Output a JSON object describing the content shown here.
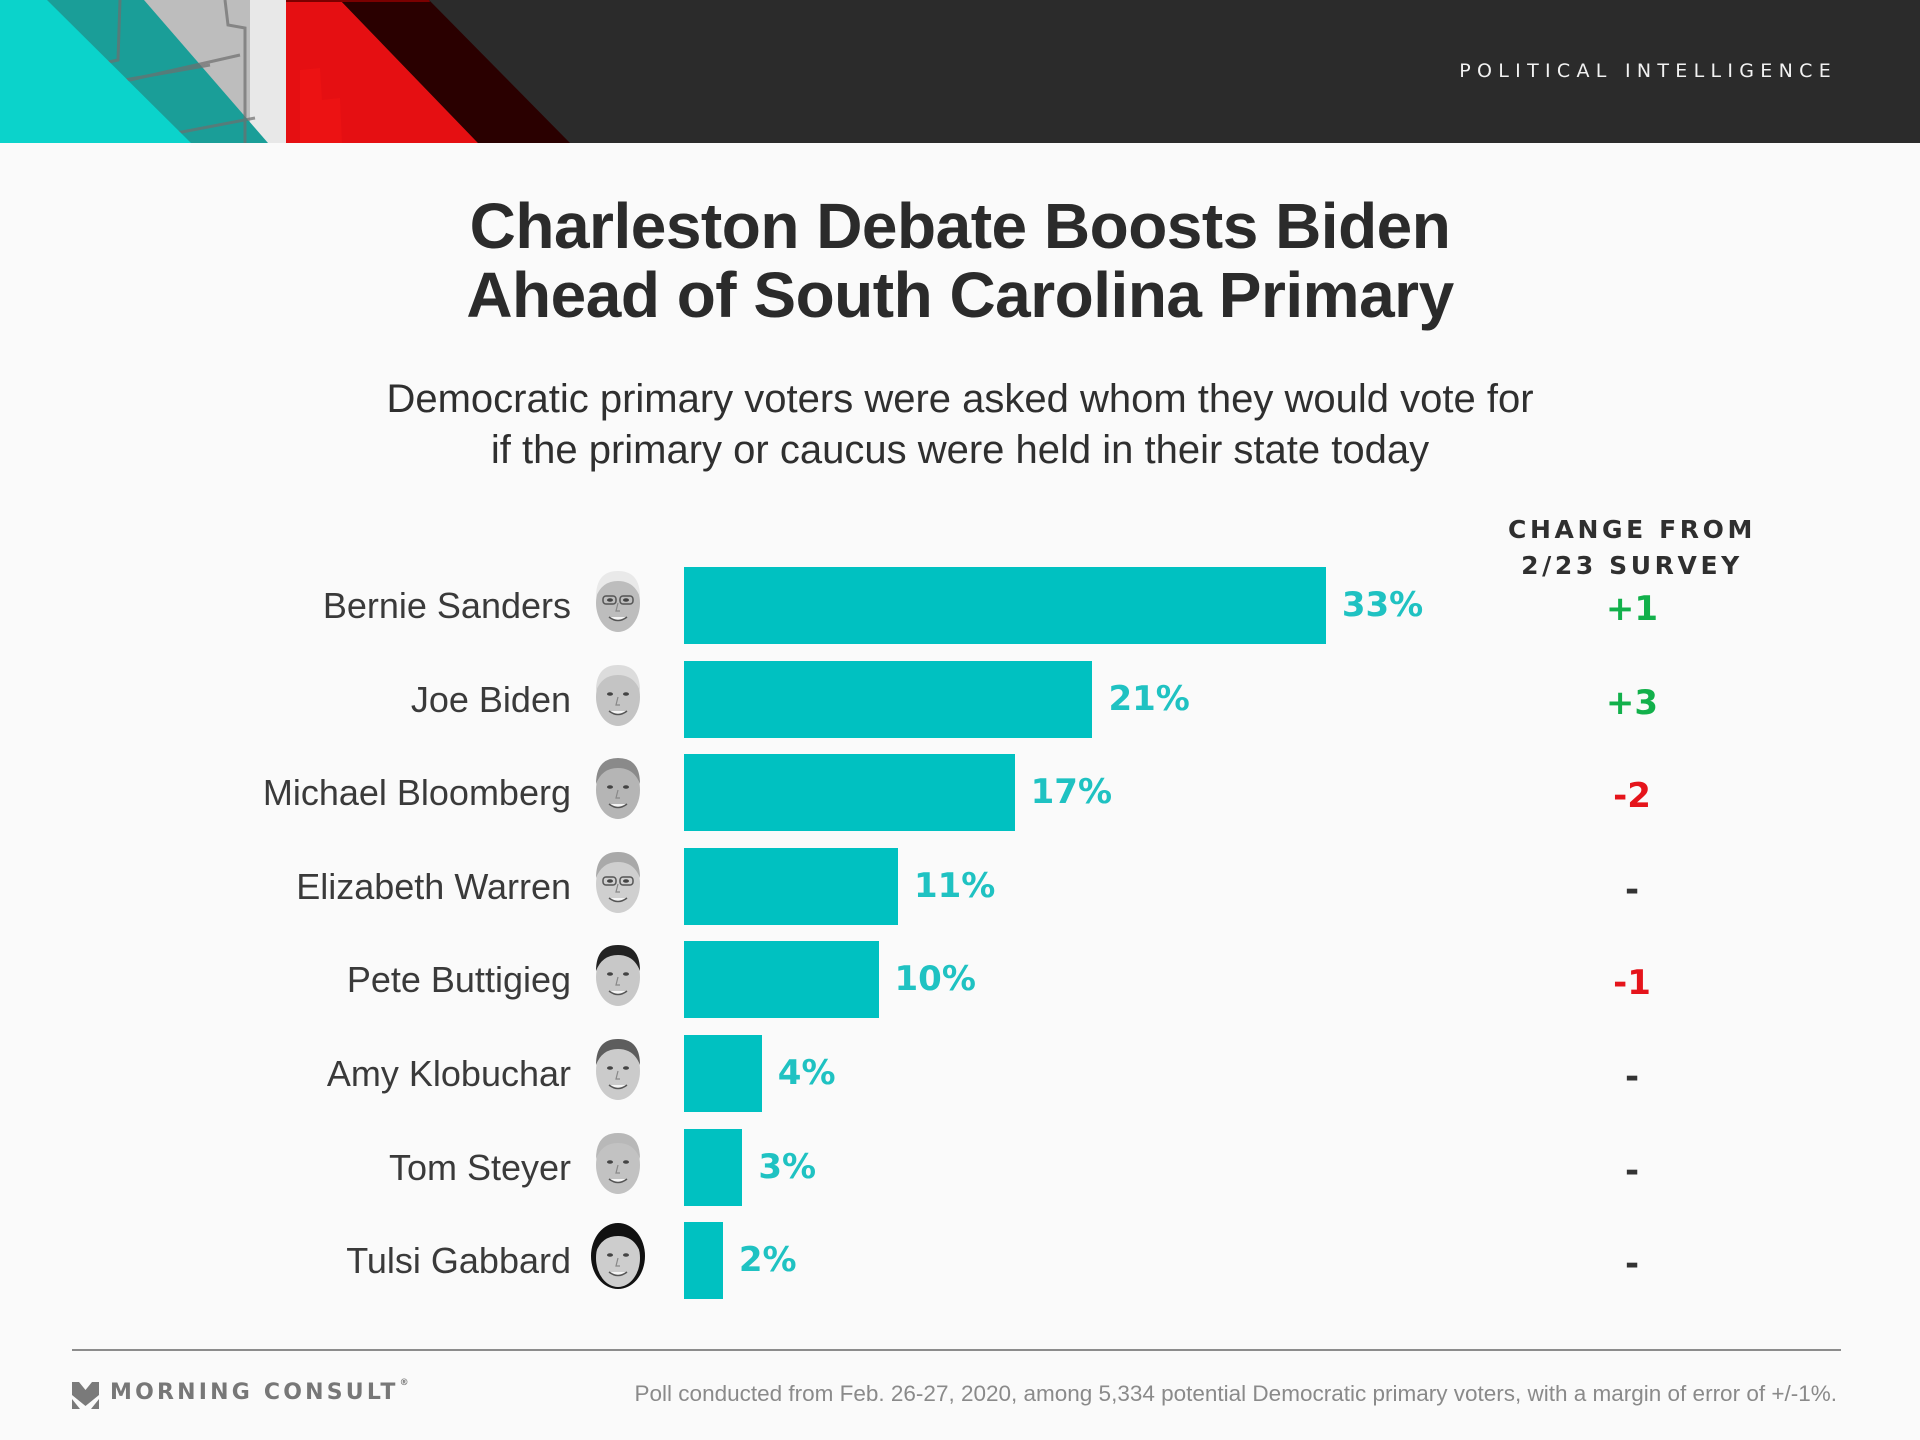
{
  "header": {
    "section_label": "POLITICAL INTELLIGENCE",
    "colors": {
      "turquoise": "#0bd3cb",
      "red": "#e50f12",
      "dark_red": "#2a0000",
      "charcoal": "#2b2b2b"
    }
  },
  "title_lines": [
    "Charleston Debate Boosts Biden",
    "Ahead of South Carolina Primary"
  ],
  "subtitle_lines": [
    "Democratic primary voters were asked whom they would vote for",
    "if the primary or caucus were held in their state today"
  ],
  "change_column": {
    "header_lines": [
      "CHANGE FROM",
      "2/23 SURVEY"
    ]
  },
  "colors": {
    "bar": "#00c1c1",
    "value_label": "#1fc2c2",
    "positive": "#12b04b",
    "negative": "#e5141b",
    "neutral": "#333333"
  },
  "chart_data": {
    "type": "bar",
    "orientation": "horizontal",
    "title": "Charleston Debate Boosts Biden Ahead of South Carolina Primary",
    "subtitle": "Democratic primary voters were asked whom they would vote for if the primary or caucus were held in their state today",
    "categories": [
      "Bernie Sanders",
      "Joe Biden",
      "Michael Bloomberg",
      "Elizabeth Warren",
      "Pete Buttigieg",
      "Amy Klobuchar",
      "Tom Steyer",
      "Tulsi Gabbard"
    ],
    "values": [
      33,
      21,
      17,
      11,
      10,
      4,
      3,
      2
    ],
    "value_labels": [
      "33%",
      "21%",
      "17%",
      "11%",
      "10%",
      "4%",
      "3%",
      "2%"
    ],
    "unit": "%",
    "change_from_prior": [
      "+1",
      "+3",
      "-2",
      "-",
      "-1",
      "-",
      "-",
      "-"
    ],
    "change_direction": [
      "up",
      "up",
      "down",
      "none",
      "down",
      "none",
      "none",
      "none"
    ],
    "change_header": "CHANGE FROM 2/23 SURVEY",
    "xlabel": "",
    "ylabel": "",
    "xlim": [
      0,
      33
    ],
    "grid": false,
    "legend": "none"
  },
  "candidates": [
    {
      "name": "Bernie Sanders",
      "avatar": "bernie-sanders-portrait",
      "value": "33%",
      "change": "+1",
      "dir": "up"
    },
    {
      "name": "Joe Biden",
      "avatar": "joe-biden-portrait",
      "value": "21%",
      "change": "+3",
      "dir": "up"
    },
    {
      "name": "Michael Bloomberg",
      "avatar": "michael-bloomberg-portrait",
      "value": "17%",
      "change": "-2",
      "dir": "down"
    },
    {
      "name": "Elizabeth Warren",
      "avatar": "elizabeth-warren-portrait",
      "value": "11%",
      "change": "-",
      "dir": "none"
    },
    {
      "name": "Pete Buttigieg",
      "avatar": "pete-buttigieg-portrait",
      "value": "10%",
      "change": "-1",
      "dir": "down"
    },
    {
      "name": "Amy Klobuchar",
      "avatar": "amy-klobuchar-portrait",
      "value": "4%",
      "change": "-",
      "dir": "none"
    },
    {
      "name": "Tom Steyer",
      "avatar": "tom-steyer-portrait",
      "value": "3%",
      "change": "-",
      "dir": "none"
    },
    {
      "name": "Tulsi Gabbard",
      "avatar": "tulsi-gabbard-portrait",
      "value": "2%",
      "change": "-",
      "dir": "none"
    }
  ],
  "footer": {
    "logo_text": "MORNING CONSULT",
    "logo_mark": "®",
    "logo_icon": "morning-consult-chevron-logo",
    "note": "Poll conducted from Feb. 26-27, 2020, among 5,334 potential Democratic primary voters, with a margin of error of +/-1%."
  }
}
